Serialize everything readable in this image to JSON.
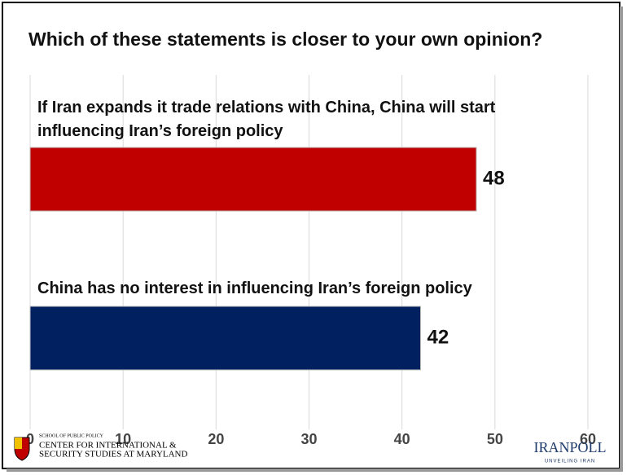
{
  "chart_data": {
    "type": "hbar",
    "title": "Which of these statements is closer to your own opinion?",
    "categories": [
      "If Iran expands it trade relations with China, China will start influencing Iran’s foreign policy",
      "China has no interest in influencing Iran’s foreign policy"
    ],
    "values": [
      48,
      42
    ],
    "colors": [
      "#c00000",
      "#002060"
    ],
    "xlim": [
      0,
      60
    ],
    "xticks": [
      0,
      10,
      20,
      30,
      40,
      50,
      60
    ],
    "grid": true
  },
  "footer": {
    "left_logo": [
      "SCHOOL OF PUBLIC POLICY",
      "CENTER FOR INTERNATIONAL &",
      "SECURITY STUDIES AT MARYLAND"
    ],
    "right_logo": [
      "IRANPOLL",
      "UNVEILING IRAN"
    ]
  }
}
